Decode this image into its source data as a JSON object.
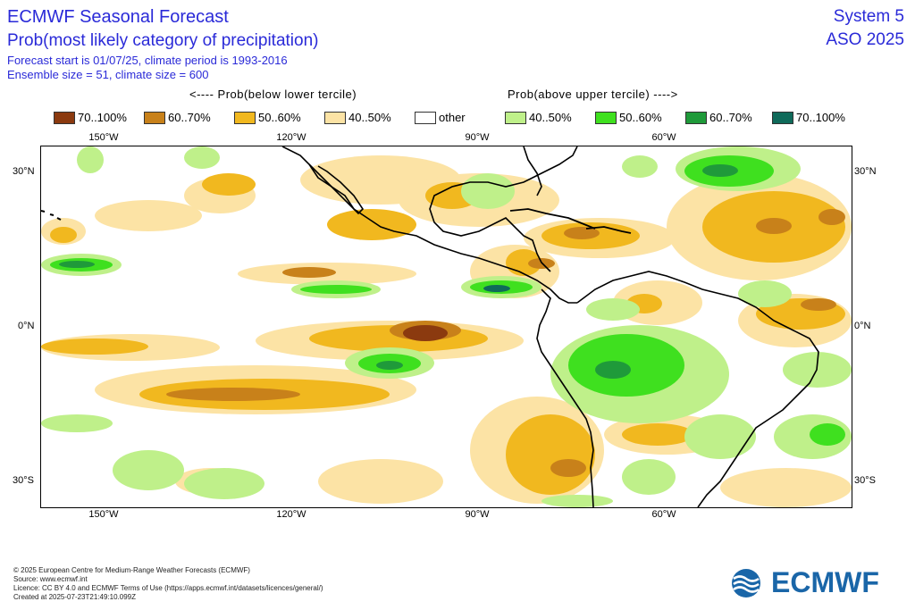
{
  "header": {
    "title": "ECMWF Seasonal Forecast",
    "subtitle": "Prob(most likely category of precipitation)",
    "line3": "Forecast start is 01/07/25, climate period is 1993-2016",
    "line4": "Ensemble size = 51, climate size = 600",
    "system": "System 5",
    "season": "ASO 2025"
  },
  "arrow_labels": {
    "below": "<---- Prob(below lower tercile)",
    "above": "Prob(above upper tercile) ---->"
  },
  "legend": [
    {
      "label": "70..100%",
      "color": "#8b3a0f"
    },
    {
      "label": "60..70%",
      "color": "#c8811a"
    },
    {
      "label": "50..60%",
      "color": "#f1b81f"
    },
    {
      "label": "40..50%",
      "color": "#fce3a5"
    },
    {
      "label": "other",
      "color": "#ffffff"
    },
    {
      "label": "40..50%",
      "color": "#bff08a"
    },
    {
      "label": "50..60%",
      "color": "#3fe01f"
    },
    {
      "label": "60..70%",
      "color": "#1f9a3a"
    },
    {
      "label": "70..100%",
      "color": "#0f6a5a"
    }
  ],
  "axes": {
    "lon_labels": [
      "150°W",
      "120°W",
      "90°W",
      "60°W"
    ],
    "lat_left": [
      "30°N",
      "0°N",
      "30°S"
    ],
    "lat_right": [
      "30°N",
      "0°N",
      "30°S"
    ]
  },
  "footer": {
    "l1": "© 2025 European Centre for Medium-Range Weather Forecasts (ECMWF)",
    "l2": "Source: www.ecmwf.int",
    "l3": "Licence: CC BY 4.0 and ECMWF Terms of Use (https://apps.ecmwf.int/datasets/licences/general/)",
    "l4": "Created at 2025-07-23T21:49:10.099Z"
  },
  "logo": {
    "text": "ECMWF",
    "color": "#1a66a8",
    "icon": "ecmwf-logo-icon"
  }
}
